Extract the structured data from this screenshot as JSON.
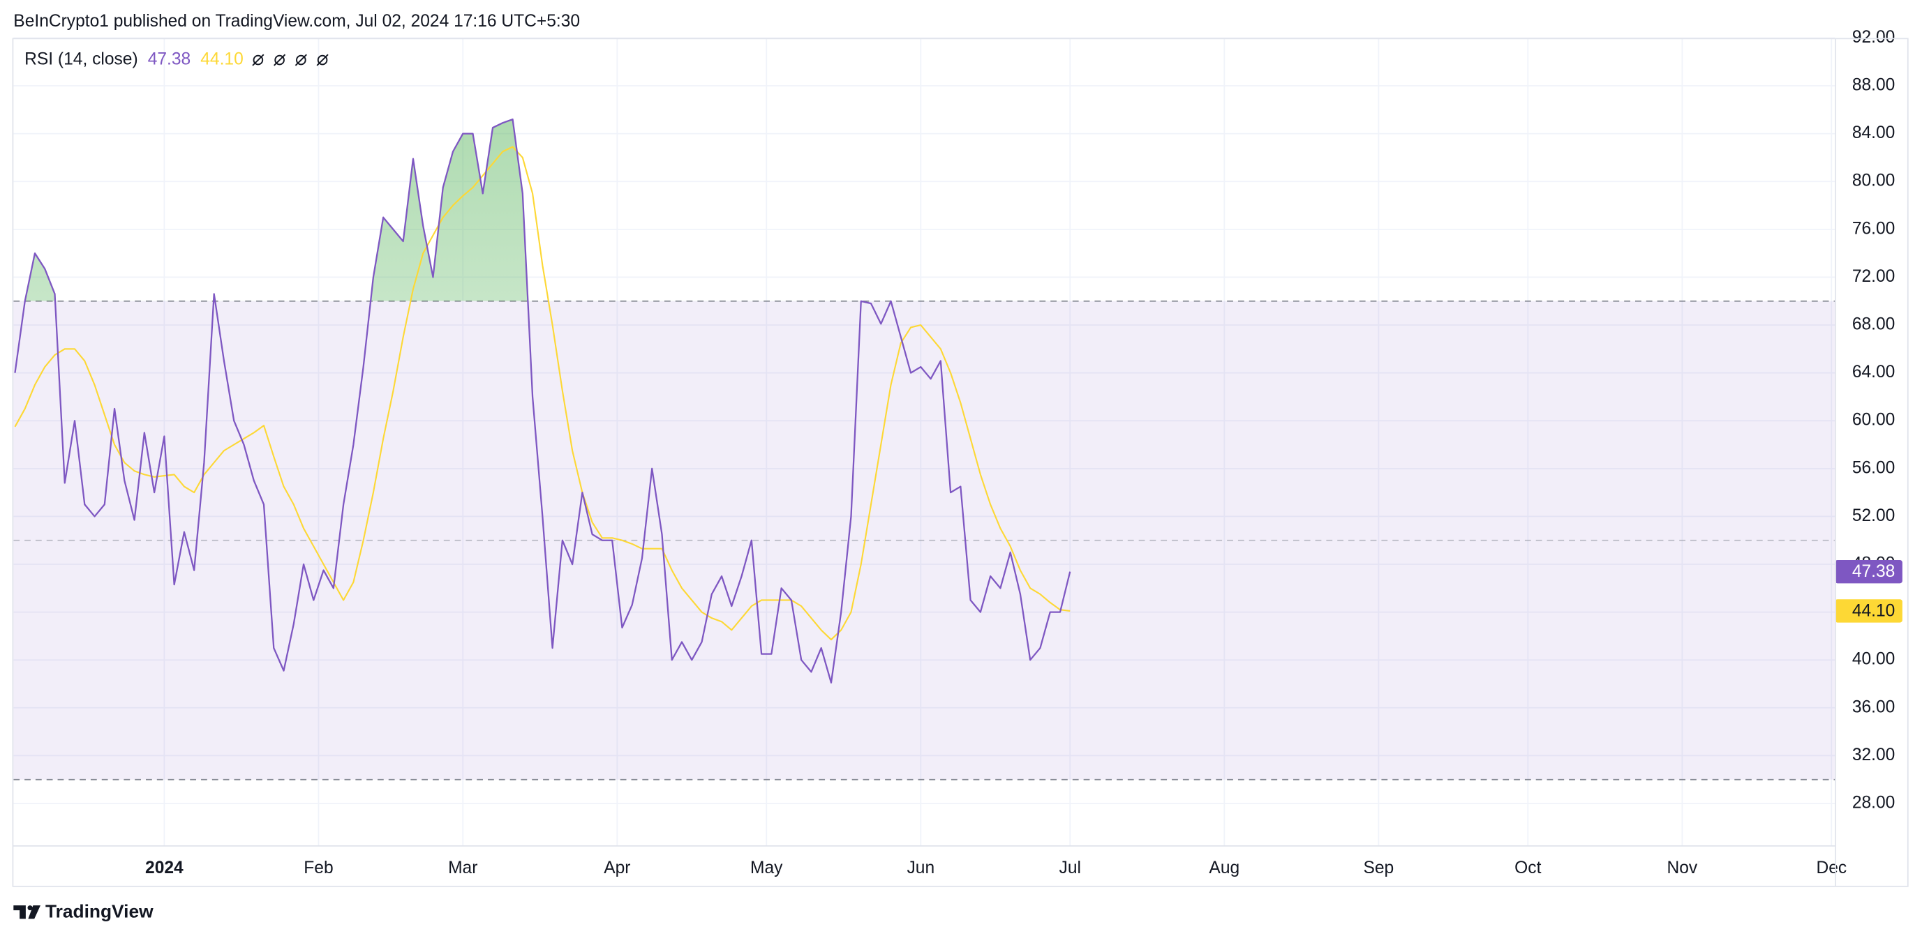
{
  "header": {
    "text": "BeInCrypto1 published on TradingView.com, Jul 02, 2024 17:16 UTC+5:30"
  },
  "footer": {
    "brand": "TradingView"
  },
  "chart_data": {
    "type": "line",
    "title": "RSI (14, close)",
    "x": [
      -30,
      -28,
      -26,
      -24,
      -22,
      -20,
      -18,
      -16,
      -14,
      -12,
      -10,
      -8,
      -6,
      -4,
      -2,
      0,
      2,
      4,
      6,
      8,
      10,
      12,
      14,
      16,
      18,
      20,
      22,
      24,
      26,
      28,
      30,
      32,
      34,
      36,
      38,
      40,
      42,
      44,
      46,
      48,
      50,
      52,
      54,
      56,
      58,
      60,
      62,
      64,
      66,
      68,
      70,
      72,
      74,
      76,
      78,
      80,
      82,
      84,
      86,
      88,
      90,
      92,
      94,
      96,
      98,
      100,
      102,
      104,
      106,
      108,
      110,
      112,
      114,
      116,
      118,
      120,
      122,
      124,
      126,
      128,
      130,
      132,
      134,
      136,
      138,
      140,
      142,
      144,
      146,
      148,
      150,
      152,
      154,
      156,
      158,
      160,
      162,
      164,
      166,
      168,
      170,
      172,
      174,
      176,
      178,
      180,
      182
    ],
    "series": [
      {
        "color": "#7e57c2",
        "last_label": "47.38",
        "values": [
          64,
          70,
          74,
          72.7,
          70.6,
          54.8,
          60,
          53,
          52,
          53,
          61,
          55,
          51.7,
          59,
          54,
          58.7,
          46.3,
          50.7,
          47.5,
          56.5,
          70.6,
          65,
          60,
          58,
          55,
          53,
          41,
          39.1,
          43,
          48,
          45,
          47.5,
          46,
          53,
          58,
          64.5,
          72,
          77,
          76,
          75,
          81.9,
          76.3,
          72,
          79.5,
          82.5,
          84,
          84,
          79,
          84.5,
          84.9,
          85.2,
          79,
          62,
          52,
          41,
          50,
          48,
          54,
          50.5,
          50,
          50,
          42.7,
          44.6,
          48.5,
          56,
          50.5,
          40,
          41.5,
          40,
          41.5,
          45.5,
          47,
          44.5,
          47,
          50,
          40.5,
          40.5,
          46,
          45,
          40,
          39,
          41,
          38.1,
          44,
          52,
          70,
          69.8,
          68.1,
          70,
          67,
          64,
          64.5,
          63.5,
          65,
          54,
          54.5,
          45,
          44,
          47,
          46,
          49,
          45.5,
          40,
          41,
          44,
          44,
          47.38
        ]
      },
      {
        "color": "#fdd835",
        "last_label": "44.10",
        "values": [
          59.5,
          61,
          63,
          64.5,
          65.5,
          66,
          66,
          65,
          63,
          60.5,
          58,
          56.5,
          55.8,
          55.5,
          55.3,
          55.4,
          55.5,
          54.5,
          54,
          55.5,
          56.5,
          57.5,
          58,
          58.5,
          59,
          59.6,
          57,
          54.5,
          53,
          51,
          49.5,
          48,
          46.5,
          45,
          46.5,
          50,
          54,
          58.5,
          62.5,
          67,
          71,
          74,
          75.5,
          77,
          78,
          78.8,
          79.5,
          80.5,
          81.5,
          82.5,
          82.9,
          82,
          79,
          73,
          68,
          62.5,
          57.5,
          54,
          51.5,
          50.2,
          50.2,
          50,
          49.7,
          49.3,
          49.3,
          49.3,
          47.5,
          46,
          45,
          44,
          43.5,
          43.2,
          42.5,
          43.5,
          44.5,
          45,
          45,
          45,
          45,
          44.5,
          43.5,
          42.5,
          41.7,
          42.5,
          44,
          48,
          53,
          58,
          63,
          66.5,
          67.8,
          68,
          67,
          66,
          64,
          61.5,
          58.5,
          55.5,
          53,
          51,
          49.5,
          47.5,
          46,
          45.5,
          44.8,
          44.2,
          44.1
        ]
      }
    ],
    "xlim": [
      -30.3,
      335.7
    ],
    "xticks": [
      {
        "value": 0,
        "label": "2024"
      },
      {
        "value": 31,
        "label": "Feb"
      },
      {
        "value": 60,
        "label": "Mar"
      },
      {
        "value": 91,
        "label": "Apr"
      },
      {
        "value": 121,
        "label": "May"
      },
      {
        "value": 152,
        "label": "Jun"
      },
      {
        "value": 182,
        "label": "Jul"
      },
      {
        "value": 213,
        "label": "Aug"
      },
      {
        "value": 244,
        "label": "Sep"
      },
      {
        "value": 274,
        "label": "Oct"
      },
      {
        "value": 305,
        "label": "Nov"
      },
      {
        "value": 335,
        "label": "Dec"
      }
    ],
    "ylim": [
      24.5,
      92
    ],
    "yticks": [
      {
        "value": 28,
        "label": "28.00"
      },
      {
        "value": 32,
        "label": "32.00"
      },
      {
        "value": 36,
        "label": "36.00"
      },
      {
        "value": 40,
        "label": "40.00"
      },
      {
        "value": 44,
        "label": "44.00"
      },
      {
        "value": 48,
        "label": "48.00"
      },
      {
        "value": 52,
        "label": "52.00"
      },
      {
        "value": 56,
        "label": "56.00"
      },
      {
        "value": 60,
        "label": "60.00"
      },
      {
        "value": 64,
        "label": "64.00"
      },
      {
        "value": 68,
        "label": "68.00"
      },
      {
        "value": 72,
        "label": "72.00"
      },
      {
        "value": 76,
        "label": "76.00"
      },
      {
        "value": 80,
        "label": "80.00"
      },
      {
        "value": 84,
        "label": "84.00"
      },
      {
        "value": 88,
        "label": "88.00"
      },
      {
        "value": 92,
        "label": "92.00"
      }
    ],
    "bands": {
      "upper": 70,
      "middle": 50,
      "lower": 30
    },
    "band_fill": "#7e57c2",
    "overbought_fill": "#4caf50",
    "grid": true
  }
}
